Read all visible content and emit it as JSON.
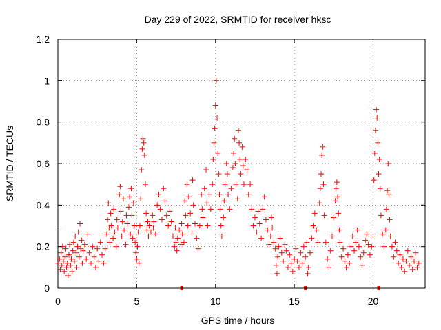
{
  "chart_data": {
    "type": "scatter",
    "title": "Day 229 of 2022, SRMTID for receiver hksc",
    "xlabel": "GPS time / hours",
    "ylabel": "SRMTID / TECUs",
    "xlim": [
      0,
      23.3
    ],
    "ylim": [
      0,
      1.2
    ],
    "xticks": [
      0,
      5,
      10,
      15,
      20
    ],
    "xtick_labels": [
      "0",
      "5",
      "10",
      "15",
      "20"
    ],
    "yticks": [
      0,
      0.2,
      0.4,
      0.6,
      0.8,
      1.0,
      1.2
    ],
    "ytick_labels": [
      "0",
      "0.2",
      "0.4",
      "0.6",
      "0.8",
      "1",
      "1.2"
    ],
    "grid": true,
    "marker": "plus",
    "color": "#ff0000",
    "series": [
      {
        "name": "SRMTID",
        "points": [
          [
            0.0,
            0.29
          ],
          [
            0.0,
            0.12
          ],
          [
            0.1,
            0.14
          ],
          [
            0.15,
            0.09
          ],
          [
            0.2,
            0.17
          ],
          [
            0.25,
            0.11
          ],
          [
            0.3,
            0.2
          ],
          [
            0.35,
            0.13
          ],
          [
            0.4,
            0.08
          ],
          [
            0.45,
            0.15
          ],
          [
            0.5,
            0.19
          ],
          [
            0.55,
            0.1
          ],
          [
            0.6,
            0.12
          ],
          [
            0.65,
            0.06
          ],
          [
            0.7,
            0.16
          ],
          [
            0.75,
            0.21
          ],
          [
            0.8,
            0.11
          ],
          [
            0.85,
            0.14
          ],
          [
            0.9,
            0.08
          ],
          [
            0.95,
            0.18
          ],
          [
            1.0,
            0.22
          ],
          [
            1.05,
            0.13
          ],
          [
            1.1,
            0.25
          ],
          [
            1.15,
            0.17
          ],
          [
            1.2,
            0.1
          ],
          [
            1.25,
            0.2
          ],
          [
            1.3,
            0.27
          ],
          [
            1.35,
            0.15
          ],
          [
            1.4,
            0.31
          ],
          [
            1.45,
            0.19
          ],
          [
            1.5,
            0.23
          ],
          [
            1.55,
            0.12
          ],
          [
            1.6,
            0.18
          ],
          [
            1.7,
            0.21
          ],
          [
            1.8,
            0.14
          ],
          [
            1.9,
            0.26
          ],
          [
            2.0,
            0.17
          ],
          [
            2.1,
            0.12
          ],
          [
            2.2,
            0.2
          ],
          [
            2.3,
            0.15
          ],
          [
            2.4,
            0.1
          ],
          [
            2.5,
            0.19
          ],
          [
            2.6,
            0.13
          ],
          [
            2.7,
            0.22
          ],
          [
            2.8,
            0.16
          ],
          [
            2.9,
            0.12
          ],
          [
            3.0,
            0.19
          ],
          [
            3.1,
            0.26
          ],
          [
            3.15,
            0.33
          ],
          [
            3.2,
            0.41
          ],
          [
            3.25,
            0.29
          ],
          [
            3.3,
            0.22
          ],
          [
            3.35,
            0.36
          ],
          [
            3.4,
            0.3
          ],
          [
            3.5,
            0.24
          ],
          [
            3.55,
            0.38
          ],
          [
            3.6,
            0.27
          ],
          [
            3.7,
            0.2
          ],
          [
            3.75,
            0.33
          ],
          [
            3.8,
            0.29
          ],
          [
            3.9,
            0.45
          ],
          [
            3.95,
            0.49
          ],
          [
            4.0,
            0.37
          ],
          [
            4.05,
            0.25
          ],
          [
            4.1,
            0.32
          ],
          [
            4.15,
            0.43
          ],
          [
            4.2,
            0.28
          ],
          [
            4.3,
            0.21
          ],
          [
            4.35,
            0.35
          ],
          [
            4.4,
            0.31
          ],
          [
            4.5,
            0.39
          ],
          [
            4.55,
            0.44
          ],
          [
            4.6,
            0.26
          ],
          [
            4.65,
            0.48
          ],
          [
            4.7,
            0.35
          ],
          [
            4.75,
            0.24
          ],
          [
            4.8,
            0.41
          ],
          [
            4.85,
            0.3
          ],
          [
            4.9,
            0.22
          ],
          [
            4.95,
            0.17
          ],
          [
            5.0,
            0.14
          ],
          [
            5.05,
            0.2
          ],
          [
            5.1,
            0.27
          ],
          [
            5.15,
            0.12
          ],
          [
            5.2,
            0.3
          ],
          [
            5.25,
            0.43
          ],
          [
            5.3,
            0.57
          ],
          [
            5.35,
            0.67
          ],
          [
            5.4,
            0.72
          ],
          [
            5.45,
            0.7
          ],
          [
            5.5,
            0.64
          ],
          [
            5.55,
            0.5
          ],
          [
            5.6,
            0.36
          ],
          [
            5.65,
            0.28
          ],
          [
            5.7,
            0.32
          ],
          [
            5.75,
            0.25
          ],
          [
            5.8,
            0.3
          ],
          [
            5.9,
            0.27
          ],
          [
            6.0,
            0.35
          ],
          [
            6.05,
            0.29
          ],
          [
            6.1,
            0.32
          ],
          [
            6.2,
            0.26
          ],
          [
            6.3,
            0.4
          ],
          [
            6.4,
            0.45
          ],
          [
            6.5,
            0.38
          ],
          [
            6.6,
            0.33
          ],
          [
            6.7,
            0.48
          ],
          [
            6.8,
            0.42
          ],
          [
            6.9,
            0.35
          ],
          [
            7.0,
            0.3
          ],
          [
            7.1,
            0.37
          ],
          [
            7.2,
            0.32
          ],
          [
            7.3,
            0.25
          ],
          [
            7.4,
            0.2
          ],
          [
            7.45,
            0.29
          ],
          [
            7.5,
            0.22
          ],
          [
            7.55,
            0.18
          ],
          [
            7.6,
            0.24
          ],
          [
            7.7,
            0.28
          ],
          [
            7.8,
            0.21
          ],
          [
            7.85,
            0.31
          ],
          [
            7.9,
            0.26
          ],
          [
            8.0,
            0.22
          ],
          [
            8.05,
            0.42
          ],
          [
            8.1,
            0.35
          ],
          [
            8.2,
            0.5
          ],
          [
            8.25,
            0.3
          ],
          [
            8.3,
            0.44
          ],
          [
            8.4,
            0.36
          ],
          [
            8.5,
            0.27
          ],
          [
            8.55,
            0.52
          ],
          [
            8.6,
            0.4
          ],
          [
            8.7,
            0.31
          ],
          [
            8.8,
            0.24
          ],
          [
            8.9,
            0.19
          ],
          [
            9.0,
            0.3
          ],
          [
            9.1,
            0.45
          ],
          [
            9.15,
            0.38
          ],
          [
            9.2,
            0.34
          ],
          [
            9.3,
            0.48
          ],
          [
            9.4,
            0.57
          ],
          [
            9.45,
            0.41
          ],
          [
            9.5,
            0.3
          ],
          [
            9.6,
            0.45
          ],
          [
            9.7,
            0.38
          ],
          [
            9.8,
            0.5
          ],
          [
            9.85,
            0.62
          ],
          [
            9.9,
            0.7
          ],
          [
            9.95,
            0.77
          ],
          [
            10.0,
            0.88
          ],
          [
            10.05,
            1.0
          ],
          [
            10.1,
            0.82
          ],
          [
            10.15,
            0.65
          ],
          [
            10.2,
            0.55
          ],
          [
            10.25,
            0.45
          ],
          [
            10.3,
            0.38
          ],
          [
            10.35,
            0.3
          ],
          [
            10.4,
            0.25
          ],
          [
            10.5,
            0.34
          ],
          [
            10.55,
            0.42
          ],
          [
            10.6,
            0.5
          ],
          [
            10.7,
            0.6
          ],
          [
            10.75,
            0.55
          ],
          [
            10.8,
            0.45
          ],
          [
            10.9,
            0.38
          ],
          [
            11.0,
            0.48
          ],
          [
            11.1,
            0.58
          ],
          [
            11.15,
            0.65
          ],
          [
            11.2,
            0.72
          ],
          [
            11.25,
            0.6
          ],
          [
            11.3,
            0.5
          ],
          [
            11.4,
            0.43
          ],
          [
            11.45,
            0.76
          ],
          [
            11.5,
            0.7
          ],
          [
            11.55,
            0.62
          ],
          [
            11.6,
            0.55
          ],
          [
            11.7,
            0.68
          ],
          [
            11.75,
            0.59
          ],
          [
            11.8,
            0.5
          ],
          [
            11.9,
            0.62
          ],
          [
            12.0,
            0.57
          ],
          [
            12.1,
            0.45
          ],
          [
            12.2,
            0.5
          ],
          [
            12.3,
            0.38
          ],
          [
            12.4,
            0.3
          ],
          [
            12.5,
            0.34
          ],
          [
            12.6,
            0.27
          ],
          [
            12.7,
            0.37
          ],
          [
            12.8,
            0.31
          ],
          [
            12.9,
            0.24
          ],
          [
            13.0,
            0.38
          ],
          [
            13.1,
            0.44
          ],
          [
            13.2,
            0.33
          ],
          [
            13.3,
            0.28
          ],
          [
            13.4,
            0.21
          ],
          [
            13.5,
            0.25
          ],
          [
            13.55,
            0.34
          ],
          [
            13.6,
            0.29
          ],
          [
            13.7,
            0.22
          ],
          [
            13.8,
            0.19
          ],
          [
            13.85,
            0.11
          ],
          [
            13.9,
            0.07
          ],
          [
            13.95,
            0.15
          ],
          [
            14.0,
            0.2
          ],
          [
            14.1,
            0.24
          ],
          [
            14.2,
            0.17
          ],
          [
            14.3,
            0.13
          ],
          [
            14.4,
            0.21
          ],
          [
            14.5,
            0.18
          ],
          [
            14.6,
            0.1
          ],
          [
            14.7,
            0.16
          ],
          [
            14.8,
            0.12
          ],
          [
            14.9,
            0.08
          ],
          [
            15.0,
            0.14
          ],
          [
            15.1,
            0.19
          ],
          [
            15.2,
            0.13
          ],
          [
            15.3,
            0.1
          ],
          [
            15.4,
            0.17
          ],
          [
            15.5,
            0.12
          ],
          [
            15.6,
            0.2
          ],
          [
            15.7,
            0.15
          ],
          [
            15.8,
            0.22
          ],
          [
            15.85,
            0.07
          ],
          [
            15.9,
            0.1
          ],
          [
            16.0,
            0.17
          ],
          [
            16.1,
            0.24
          ],
          [
            16.2,
            0.3
          ],
          [
            16.3,
            0.36
          ],
          [
            16.4,
            0.28
          ],
          [
            16.5,
            0.22
          ],
          [
            16.6,
            0.41
          ],
          [
            16.65,
            0.48
          ],
          [
            16.7,
            0.55
          ],
          [
            16.75,
            0.64
          ],
          [
            16.8,
            0.68
          ],
          [
            16.85,
            0.5
          ],
          [
            16.9,
            0.35
          ],
          [
            17.0,
            0.22
          ],
          [
            17.1,
            0.14
          ],
          [
            17.2,
            0.1
          ],
          [
            17.3,
            0.18
          ],
          [
            17.4,
            0.25
          ],
          [
            17.5,
            0.34
          ],
          [
            17.6,
            0.42
          ],
          [
            17.65,
            0.48
          ],
          [
            17.7,
            0.51
          ],
          [
            17.75,
            0.44
          ],
          [
            17.8,
            0.36
          ],
          [
            17.85,
            0.28
          ],
          [
            17.9,
            0.22
          ],
          [
            18.0,
            0.15
          ],
          [
            18.1,
            0.19
          ],
          [
            18.2,
            0.13
          ],
          [
            18.3,
            0.1
          ],
          [
            18.4,
            0.16
          ],
          [
            18.5,
            0.12
          ],
          [
            18.6,
            0.2
          ],
          [
            18.7,
            0.25
          ],
          [
            18.8,
            0.18
          ],
          [
            18.9,
            0.22
          ],
          [
            19.0,
            0.28
          ],
          [
            19.1,
            0.2
          ],
          [
            19.2,
            0.15
          ],
          [
            19.3,
            0.11
          ],
          [
            19.4,
            0.17
          ],
          [
            19.5,
            0.23
          ],
          [
            19.6,
            0.26
          ],
          [
            19.7,
            0.21
          ],
          [
            19.8,
            0.16
          ],
          [
            19.9,
            0.2
          ],
          [
            20.0,
            0.25
          ],
          [
            20.05,
            0.52
          ],
          [
            20.1,
            0.65
          ],
          [
            20.15,
            0.76
          ],
          [
            20.2,
            0.86
          ],
          [
            20.25,
            0.82
          ],
          [
            20.3,
            0.7
          ],
          [
            20.35,
            0.55
          ],
          [
            20.4,
            0.62
          ],
          [
            20.45,
            0.48
          ],
          [
            20.5,
            0.35
          ],
          [
            20.6,
            0.26
          ],
          [
            20.7,
            0.2
          ],
          [
            20.8,
            0.28
          ],
          [
            20.85,
            0.38
          ],
          [
            20.9,
            0.47
          ],
          [
            20.95,
            0.6
          ],
          [
            21.0,
            0.45
          ],
          [
            21.05,
            0.33
          ],
          [
            21.1,
            0.25
          ],
          [
            21.2,
            0.2
          ],
          [
            21.3,
            0.15
          ],
          [
            21.4,
            0.22
          ],
          [
            21.5,
            0.18
          ],
          [
            21.6,
            0.12
          ],
          [
            21.7,
            0.16
          ],
          [
            21.8,
            0.1
          ],
          [
            21.9,
            0.14
          ],
          [
            22.0,
            0.08
          ],
          [
            22.1,
            0.13
          ],
          [
            22.2,
            0.18
          ],
          [
            22.3,
            0.11
          ],
          [
            22.4,
            0.15
          ],
          [
            22.5,
            0.09
          ],
          [
            22.6,
            0.13
          ],
          [
            22.7,
            0.17
          ],
          [
            22.8,
            0.1
          ],
          [
            22.9,
            0.12
          ]
        ]
      }
    ],
    "zero_markers_x": [
      7.85,
      15.7,
      20.35
    ]
  }
}
